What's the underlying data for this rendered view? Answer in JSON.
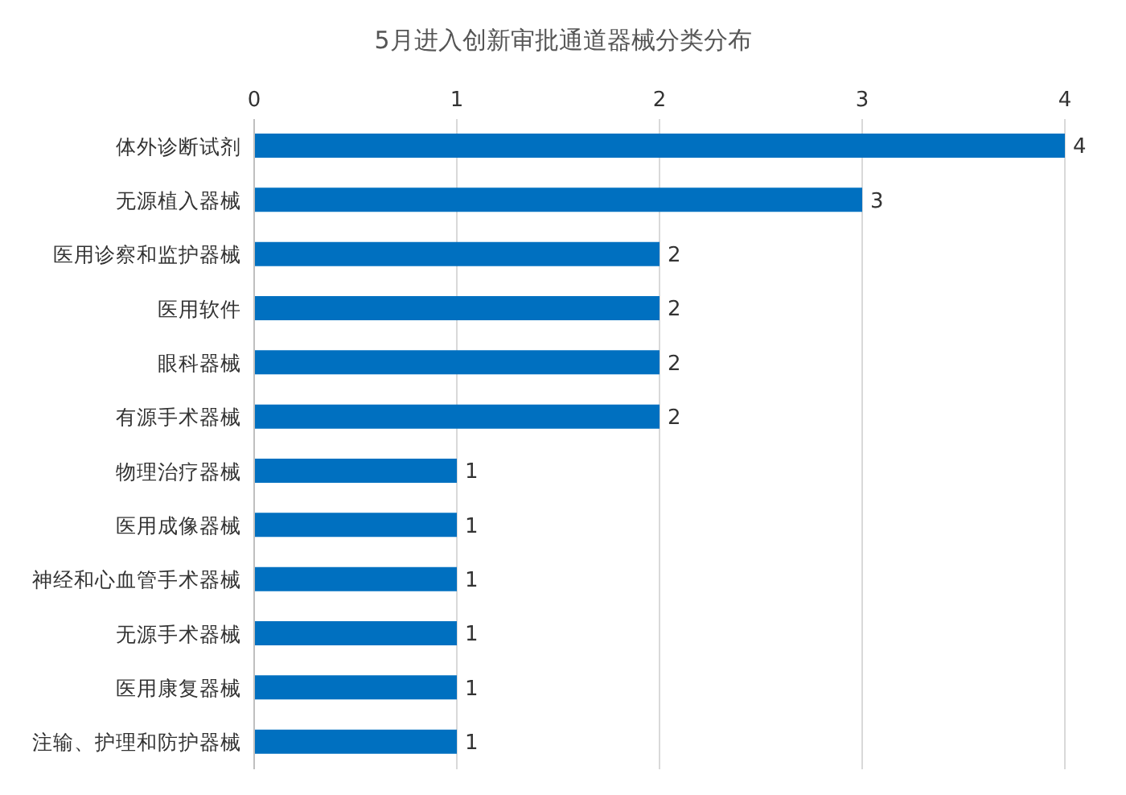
{
  "chart_data": {
    "type": "bar",
    "orientation": "horizontal",
    "title": "5月进入创新审批通道器械分类分布",
    "categories": [
      "体外诊断试剂",
      "无源植入器械",
      "医用诊察和监护器械",
      "医用软件",
      "眼科器械",
      "有源手术器械",
      "物理治疗器械",
      "医用成像器械",
      "神经和心血管手术器械",
      "无源手术器械",
      "医用康复器械",
      "注输、护理和防护器械"
    ],
    "values": [
      4,
      3,
      2,
      2,
      2,
      2,
      1,
      1,
      1,
      1,
      1,
      1
    ],
    "color": "#0070c0",
    "xlim": [
      0,
      4
    ],
    "xticks": [
      0,
      1,
      2,
      3,
      4
    ],
    "grid": "x",
    "data_labels": true
  }
}
